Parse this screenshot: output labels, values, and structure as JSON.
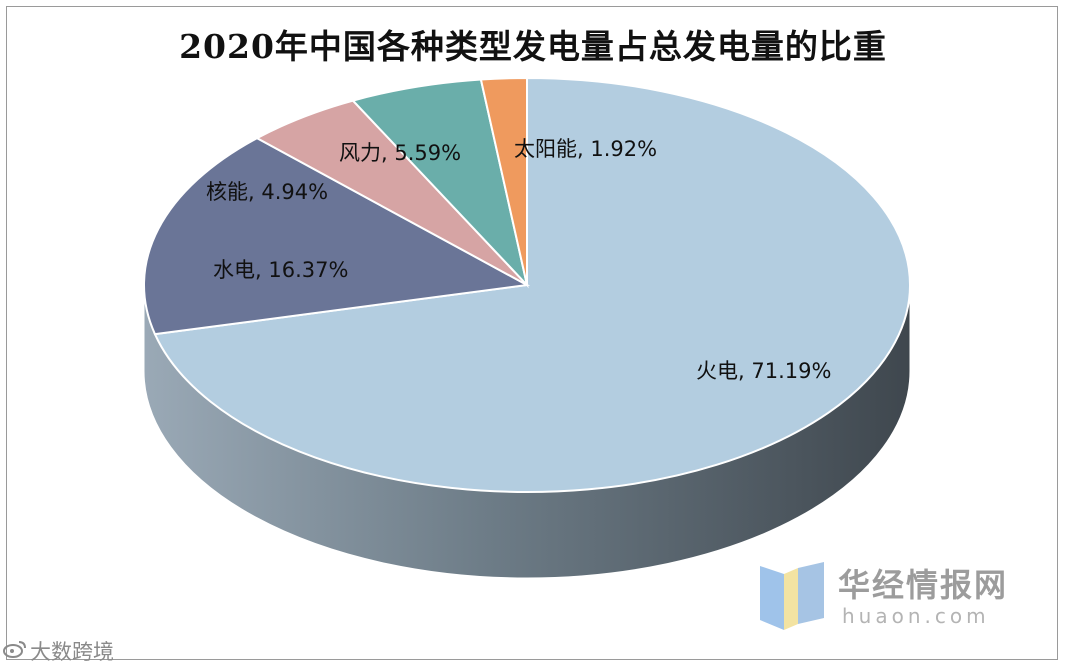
{
  "chart_data": {
    "type": "pie",
    "title": "2020年中国各种类型发电量占总发电量的比重",
    "slices": [
      {
        "name": "火电",
        "value": 71.19,
        "label": "火电, 71.19%",
        "color": "#b3cde0"
      },
      {
        "name": "水电",
        "value": 16.37,
        "label": "水电, 16.37%",
        "color": "#6a7597"
      },
      {
        "name": "核能",
        "value": 4.94,
        "label": "核能, 4.94%",
        "color": "#d6a4a4"
      },
      {
        "name": "风力",
        "value": 5.59,
        "label": "风力, 5.59%",
        "color": "#6aaeaa"
      },
      {
        "name": "太阳能",
        "value": 1.92,
        "label": "太阳能, 1.92%",
        "color": "#ef9a5e"
      }
    ]
  },
  "logo": {
    "name": "华经情报网",
    "url": "huaon.com"
  },
  "watermark": {
    "text": "大数跨境"
  }
}
